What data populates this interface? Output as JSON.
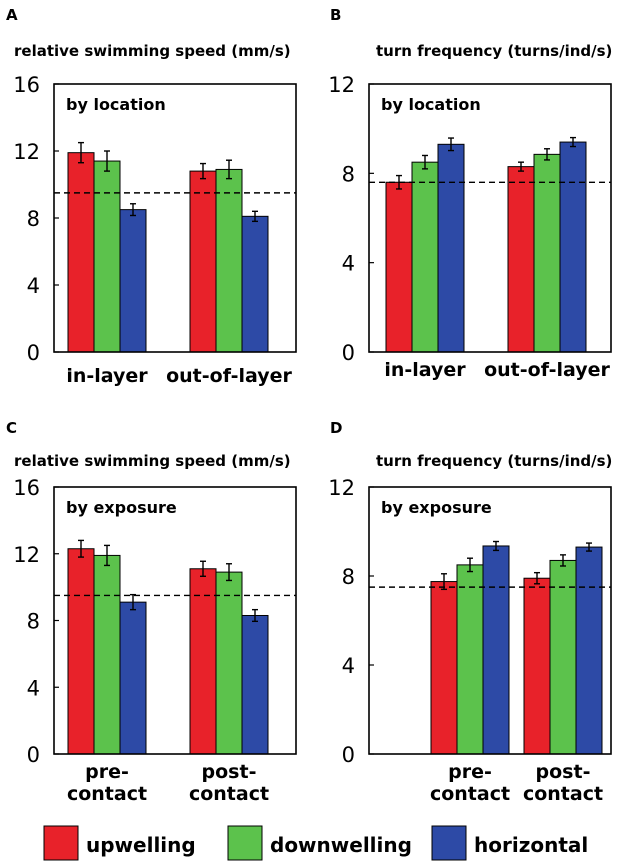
{
  "colors": {
    "upwelling": "#e8222a",
    "downwelling": "#5cc24c",
    "horizontal": "#2d4aa6",
    "refline": "#000000"
  },
  "legend": [
    {
      "key": "upwelling",
      "label": "upwelling"
    },
    {
      "key": "downwelling",
      "label": "downwelling"
    },
    {
      "key": "horizontal",
      "label": "horizontal"
    }
  ],
  "chart_data": [
    {
      "panel": "A",
      "type": "bar",
      "title": "relative swimming speed (mm/s)",
      "inset_label": "by location",
      "categories": [
        [
          "in-layer"
        ],
        [
          "out-of-layer"
        ]
      ],
      "ylim": [
        0,
        16
      ],
      "yticks": [
        0,
        4,
        8,
        12,
        16
      ],
      "ref_line": 9.5,
      "series": [
        {
          "name": "upwelling",
          "values": [
            11.9,
            10.8
          ],
          "errors": [
            0.6,
            0.45
          ]
        },
        {
          "name": "downwelling",
          "values": [
            11.4,
            10.9
          ],
          "errors": [
            0.6,
            0.55
          ]
        },
        {
          "name": "horizontal",
          "values": [
            8.5,
            8.1
          ],
          "errors": [
            0.35,
            0.3
          ]
        }
      ]
    },
    {
      "panel": "B",
      "type": "bar",
      "title": "turn frequency (turns/ind/s)",
      "inset_label": "by location",
      "categories": [
        [
          "in-layer"
        ],
        [
          "out-of-layer"
        ]
      ],
      "ylim": [
        0,
        12
      ],
      "yticks": [
        0,
        4,
        8,
        12
      ],
      "ref_line": 7.6,
      "series": [
        {
          "name": "upwelling",
          "values": [
            7.6,
            8.3
          ],
          "errors": [
            0.3,
            0.2
          ]
        },
        {
          "name": "downwelling",
          "values": [
            8.5,
            8.85
          ],
          "errors": [
            0.3,
            0.25
          ]
        },
        {
          "name": "horizontal",
          "values": [
            9.3,
            9.4
          ],
          "errors": [
            0.28,
            0.2
          ]
        }
      ]
    },
    {
      "panel": "C",
      "type": "bar",
      "title": "relative swimming speed (mm/s)",
      "inset_label": "by exposure",
      "categories": [
        [
          "pre-",
          "contact"
        ],
        [
          "post-",
          "contact"
        ]
      ],
      "ylim": [
        0,
        16
      ],
      "yticks": [
        0,
        4,
        8,
        12,
        16
      ],
      "ref_line": 9.5,
      "series": [
        {
          "name": "upwelling",
          "values": [
            12.3,
            11.1
          ],
          "errors": [
            0.5,
            0.45
          ]
        },
        {
          "name": "downwelling",
          "values": [
            11.9,
            10.9
          ],
          "errors": [
            0.6,
            0.5
          ]
        },
        {
          "name": "horizontal",
          "values": [
            9.1,
            8.3
          ],
          "errors": [
            0.45,
            0.35
          ]
        }
      ]
    },
    {
      "panel": "D",
      "type": "bar",
      "title": "turn frequency (turns/ind/s)",
      "inset_label": "by exposure",
      "categories": [
        [
          "pre-",
          "contact"
        ],
        [
          "post-",
          "contact"
        ]
      ],
      "ylim": [
        0,
        12
      ],
      "yticks": [
        0,
        4,
        8,
        12
      ],
      "ref_line": 7.5,
      "series": [
        {
          "name": "upwelling",
          "values": [
            7.75,
            7.9
          ],
          "errors": [
            0.35,
            0.25
          ]
        },
        {
          "name": "downwelling",
          "values": [
            8.5,
            8.7
          ],
          "errors": [
            0.3,
            0.25
          ]
        },
        {
          "name": "horizontal",
          "values": [
            9.35,
            9.3
          ],
          "errors": [
            0.2,
            0.18
          ]
        }
      ]
    }
  ]
}
